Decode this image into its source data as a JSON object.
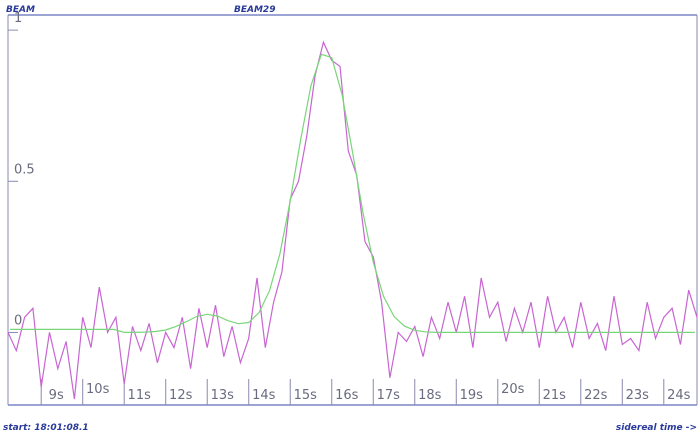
{
  "chart_data": {
    "type": "line",
    "title": "BEAM29",
    "ylabel": "BEAM",
    "xlabel": "sidereal time ->",
    "annotations": [
      "start: 18:01:08.1"
    ],
    "xlim": [
      8.2,
      24.8
    ],
    "ylim": [
      -0.24,
      1.05
    ],
    "xticks": [
      {
        "value": 9,
        "label": "9s"
      },
      {
        "value": 10,
        "label": "10s"
      },
      {
        "value": 11,
        "label": "11s"
      },
      {
        "value": 12,
        "label": "12s"
      },
      {
        "value": 13,
        "label": "13s"
      },
      {
        "value": 14,
        "label": "14s"
      },
      {
        "value": 15,
        "label": "15s"
      },
      {
        "value": 16,
        "label": "16s"
      },
      {
        "value": 17,
        "label": "17s"
      },
      {
        "value": 18,
        "label": "18s"
      },
      {
        "value": 19,
        "label": "19s"
      },
      {
        "value": 20,
        "label": "20s"
      },
      {
        "value": 21,
        "label": "21s"
      },
      {
        "value": 22,
        "label": "22s"
      },
      {
        "value": 23,
        "label": "23s"
      },
      {
        "value": 24,
        "label": "24s"
      }
    ],
    "yticks": [
      0,
      0.5,
      1
    ],
    "series": [
      {
        "color": "#c865d2",
        "x": [
          8.2,
          8.4,
          8.6,
          8.8,
          9.0,
          9.2,
          9.4,
          9.6,
          9.8,
          10.0,
          10.2,
          10.4,
          10.6,
          10.8,
          11.0,
          11.2,
          11.4,
          11.6,
          11.8,
          12.0,
          12.2,
          12.4,
          12.6,
          12.8,
          13.0,
          13.2,
          13.4,
          13.6,
          13.8,
          14.0,
          14.2,
          14.4,
          14.6,
          14.8,
          15.0,
          15.2,
          15.4,
          15.6,
          15.8,
          16.0,
          16.2,
          16.4,
          16.6,
          16.8,
          17.0,
          17.2,
          17.4,
          17.6,
          17.8,
          18.0,
          18.2,
          18.4,
          18.6,
          18.8,
          19.0,
          19.2,
          19.4,
          19.6,
          19.8,
          20.0,
          20.2,
          20.4,
          20.6,
          20.8,
          21.0,
          21.2,
          21.4,
          21.6,
          21.8,
          22.0,
          22.2,
          22.4,
          22.6,
          22.8,
          23.0,
          23.2,
          23.4,
          23.6,
          23.8,
          24.0,
          24.2,
          24.4,
          24.6,
          24.8
        ],
        "values": [
          0.0,
          -0.06,
          0.05,
          0.08,
          -0.18,
          0.0,
          -0.12,
          -0.03,
          -0.22,
          0.05,
          -0.05,
          0.15,
          0.0,
          0.05,
          -0.17,
          0.02,
          -0.06,
          0.03,
          -0.1,
          0.0,
          -0.05,
          0.05,
          -0.12,
          0.08,
          -0.05,
          0.09,
          -0.08,
          0.02,
          -0.1,
          -0.02,
          0.18,
          -0.05,
          0.1,
          0.2,
          0.44,
          0.5,
          0.65,
          0.85,
          0.96,
          0.9,
          0.88,
          0.6,
          0.52,
          0.3,
          0.25,
          0.1,
          -0.15,
          0.0,
          -0.03,
          0.02,
          -0.08,
          0.05,
          -0.02,
          0.1,
          0.0,
          0.12,
          -0.05,
          0.18,
          0.05,
          0.1,
          -0.03,
          0.08,
          0.0,
          0.1,
          -0.05,
          0.12,
          0.0,
          0.05,
          -0.05,
          0.1,
          -0.02,
          0.03,
          -0.06,
          0.12,
          -0.04,
          -0.02,
          -0.06,
          0.1,
          -0.02,
          0.05,
          0.08,
          -0.04,
          0.14,
          0.05
        ]
      },
      {
        "color": "#78d678",
        "x": [
          8.25,
          8.5,
          8.75,
          9.0,
          9.25,
          9.5,
          9.75,
          10.0,
          10.25,
          10.5,
          10.75,
          11.0,
          11.25,
          11.5,
          11.75,
          12.0,
          12.25,
          12.5,
          12.75,
          13.0,
          13.25,
          13.5,
          13.75,
          14.0,
          14.25,
          14.5,
          14.75,
          15.0,
          15.25,
          15.5,
          15.75,
          16.0,
          16.25,
          16.5,
          16.75,
          17.0,
          17.25,
          17.5,
          17.75,
          18.0,
          18.25,
          18.5,
          18.75,
          19.0,
          19.25,
          19.5,
          19.75,
          20.0,
          20.25,
          20.5,
          20.75,
          21.0,
          21.25,
          21.5,
          21.75,
          22.0,
          22.25,
          22.5,
          22.75,
          23.0,
          23.25,
          23.5,
          23.75,
          24.0,
          24.25,
          24.5,
          24.75
        ],
        "values": [
          0.01,
          0.01,
          0.01,
          0.01,
          0.01,
          0.01,
          0.01,
          0.01,
          0.01,
          0.01,
          0.01,
          0.0,
          0.0,
          0.001,
          0.003,
          0.008,
          0.02,
          0.036,
          0.053,
          0.06,
          0.054,
          0.039,
          0.029,
          0.033,
          0.066,
          0.138,
          0.26,
          0.435,
          0.637,
          0.817,
          0.92,
          0.909,
          0.786,
          0.597,
          0.397,
          0.232,
          0.119,
          0.053,
          0.021,
          0.007,
          0.002,
          0,
          0,
          0,
          0,
          0,
          0,
          0,
          0,
          0,
          0,
          0,
          0,
          0,
          0,
          0,
          0,
          0,
          0,
          0,
          0,
          0,
          0,
          0,
          0,
          0,
          0
        ]
      }
    ]
  }
}
